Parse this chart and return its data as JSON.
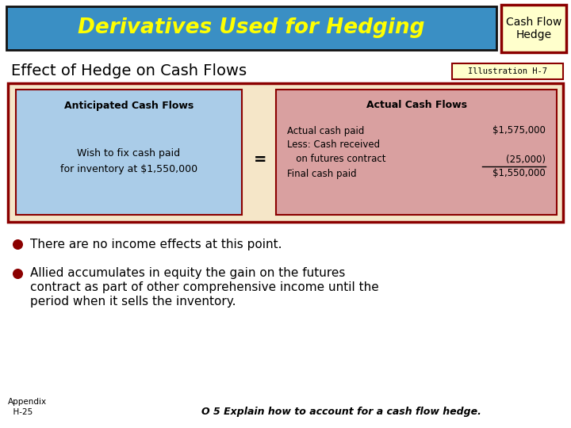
{
  "title": "Derivatives Used for Hedging",
  "title_color": "#FFFF00",
  "title_bg": "#3A8FC4",
  "cashflow_box_title": "Cash Flow\nHedge",
  "cashflow_box_bg": "#FFFFCC",
  "cashflow_box_border": "#8B0000",
  "section_title": "Effect of Hedge on Cash Flows",
  "illustration": "Illustration H-7",
  "illustration_bg": "#FFFFCC",
  "illustration_border": "#8B0000",
  "outer_box_bg": "#F5E6C8",
  "outer_box_border": "#8B0000",
  "left_box_bg": "#AACCE8",
  "left_box_border": "#8B0000",
  "left_box_title": "Anticipated Cash Flows",
  "left_box_text": "Wish to fix cash paid\nfor inventory at $1,550,000",
  "equals_sign": "=",
  "right_box_bg": "#D9A0A0",
  "right_box_border": "#8B0000",
  "right_box_title": "Actual Cash Flows",
  "right_lines": [
    [
      "Actual cash paid",
      "$1,575,000"
    ],
    [
      "Less: Cash received",
      ""
    ],
    [
      "   on futures contract",
      "(25,000)"
    ],
    [
      "Final cash paid",
      "$1,550,000"
    ]
  ],
  "bullet_color": "#8B0000",
  "bullet1": "There are no income effects at this point.",
  "bullet2_line1": "Allied accumulates in equity the gain on the futures",
  "bullet2_line2": "contract as part of other comprehensive income until the",
  "bullet2_line3": "period when it sells the inventory.",
  "appendix_line1": "Appendix",
  "appendix_line2": "  H-25",
  "footer": "O 5 Explain how to account for a cash flow hedge.",
  "bg_color": "#FFFFFF"
}
